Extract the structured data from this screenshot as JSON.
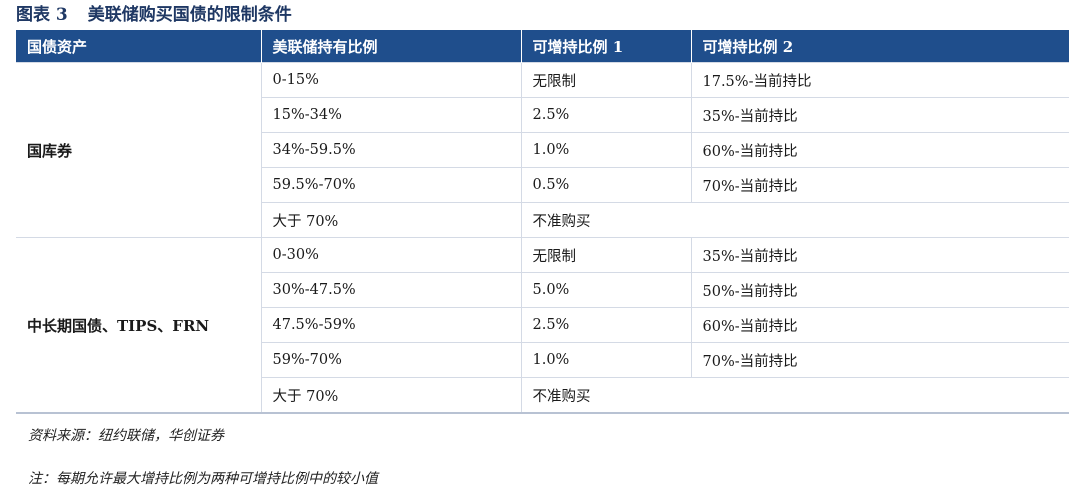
{
  "figure": {
    "number": "图表 3",
    "title": "美联储购买国债的限制条件"
  },
  "table": {
    "headers": [
      "国债资产",
      "美联储持有比例",
      "可增持比例 1",
      "可增持比例 2"
    ],
    "groups": [
      {
        "asset": "国库券",
        "rows": [
          {
            "holding": "0-15%",
            "ratio1": "无限制",
            "ratio2": "17.5%-当前持比"
          },
          {
            "holding": "15%-34%",
            "ratio1": "2.5%",
            "ratio2": "35%-当前持比"
          },
          {
            "holding": "34%-59.5%",
            "ratio1": "1.0%",
            "ratio2": "60%-当前持比"
          },
          {
            "holding": "59.5%-70%",
            "ratio1": "0.5%",
            "ratio2": "70%-当前持比"
          },
          {
            "holding": "大于 70%",
            "merged": "不准购买"
          }
        ]
      },
      {
        "asset": "中长期国债、TIPS、FRN",
        "rows": [
          {
            "holding": "0-30%",
            "ratio1": "无限制",
            "ratio2": "35%-当前持比"
          },
          {
            "holding": "30%-47.5%",
            "ratio1": "5.0%",
            "ratio2": "50%-当前持比"
          },
          {
            "holding": "47.5%-59%",
            "ratio1": "2.5%",
            "ratio2": "60%-当前持比"
          },
          {
            "holding": "59%-70%",
            "ratio1": "1.0%",
            "ratio2": "70%-当前持比"
          },
          {
            "holding": "大于 70%",
            "merged": "不准购买"
          }
        ]
      }
    ]
  },
  "source": "资料来源：纽约联储，华创证券",
  "note": "注：每期允许最大增持比例为两种可增持比例中的较小值",
  "colors": {
    "header_bg": "#1f4e8c",
    "title": "#1f3864",
    "grid": "#d4dae5"
  }
}
